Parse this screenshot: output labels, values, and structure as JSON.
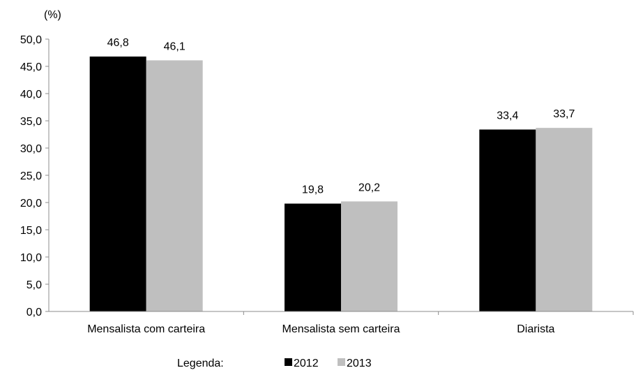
{
  "chart_data": {
    "type": "bar",
    "y_unit_label": "(%)",
    "categories": [
      "Mensalista com carteira",
      "Mensalista sem carteira",
      "Diarista"
    ],
    "series": [
      {
        "name": "2012",
        "values": [
          46.8,
          19.8,
          33.4
        ],
        "labels": [
          "46,8",
          "19,8",
          "33,4"
        ],
        "color": "#000000"
      },
      {
        "name": "2013",
        "values": [
          46.1,
          20.2,
          33.7
        ],
        "labels": [
          "46,1",
          "20,2",
          "33,7"
        ],
        "color": "#bfbfbf"
      }
    ],
    "ylim": [
      0,
      50
    ],
    "yticks": [
      0,
      5,
      10,
      15,
      20,
      25,
      30,
      35,
      40,
      45,
      50
    ],
    "ytick_labels": [
      "0,0",
      "5,0",
      "10,0",
      "15,0",
      "20,0",
      "25,0",
      "30,0",
      "35,0",
      "40,0",
      "45,0",
      "50,0"
    ],
    "grid": false,
    "legend": {
      "title": "Legenda:",
      "placement": "bottom-center"
    }
  }
}
